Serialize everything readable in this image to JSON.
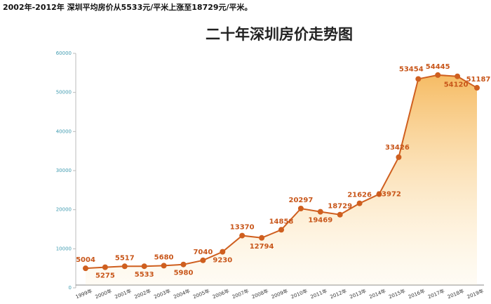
{
  "header": "2002年-2012年  深圳平均房价从5533元/平米上涨至18729元/平米。",
  "chart_data": {
    "type": "line",
    "title": "二十年深圳房价走势图",
    "categories": [
      "1999年",
      "2000年",
      "2001年",
      "2002年",
      "2003年",
      "2004年",
      "2005年",
      "2006年",
      "2007年",
      "2008年",
      "2009年",
      "2010年",
      "2011年",
      "2012年",
      "2013年",
      "2014年",
      "2015年",
      "2016年",
      "2017年",
      "2018年",
      "2019年"
    ],
    "values": [
      5004,
      5275,
      5517,
      5533,
      5680,
      5980,
      7040,
      9230,
      13370,
      12794,
      14858,
      20297,
      19469,
      18729,
      21626,
      23972,
      33426,
      53454,
      54445,
      54120,
      51187
    ],
    "color": "#cf5f1f",
    "ylim": [
      0,
      60000
    ],
    "yticks": [
      0,
      10000,
      20000,
      30000,
      40000,
      50000,
      60000
    ],
    "area": true
  }
}
